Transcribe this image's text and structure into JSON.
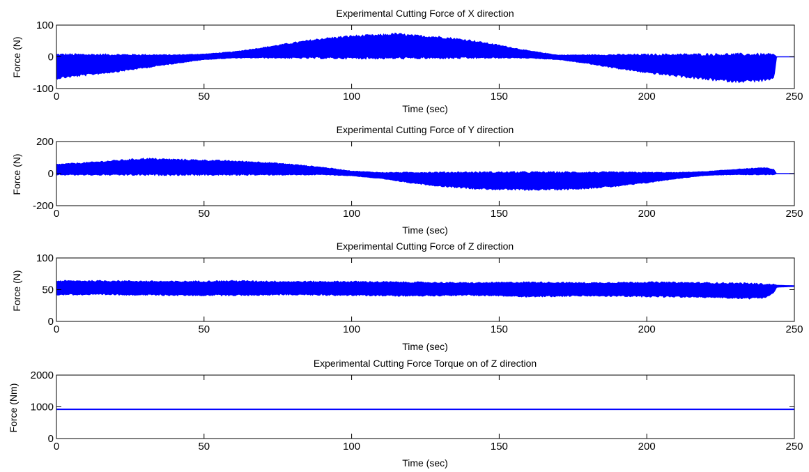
{
  "chart_data": [
    {
      "type": "line",
      "title": "Experimental Cutting Force of X direction",
      "xlabel": "Time (sec)",
      "ylabel": "Force (N)",
      "xlim": [
        0,
        250
      ],
      "ylim": [
        -100,
        100
      ],
      "xticks": [
        "0",
        "50",
        "100",
        "150",
        "200",
        "250"
      ],
      "yticks": [
        "-100",
        "0",
        "100"
      ],
      "color": "#0000ff",
      "grid": false,
      "series": [
        {
          "x": [
            0,
            10,
            20,
            30,
            40,
            50,
            60,
            70,
            80,
            90,
            100,
            110,
            115,
            120,
            130,
            140,
            150,
            160,
            170,
            180,
            190,
            200,
            210,
            220,
            230,
            240,
            243,
            244,
            250
          ],
          "upper": [
            5,
            5,
            5,
            5,
            5,
            8,
            15,
            28,
            42,
            55,
            63,
            66,
            70,
            65,
            60,
            50,
            35,
            18,
            5,
            5,
            5,
            5,
            5,
            5,
            5,
            5,
            4,
            0,
            0
          ],
          "lower": [
            -65,
            -55,
            -45,
            -33,
            -20,
            -8,
            -3,
            -2,
            -2,
            -2,
            -2,
            -2,
            -2,
            -2,
            -2,
            -2,
            -2,
            -3,
            -8,
            -20,
            -35,
            -48,
            -58,
            -68,
            -75,
            -72,
            -68,
            0,
            0
          ]
        }
      ]
    },
    {
      "type": "line",
      "title": "Experimental Cutting Force of Y direction",
      "xlabel": "Time (sec)",
      "ylabel": "Force (N)",
      "xlim": [
        0,
        250
      ],
      "ylim": [
        -200,
        200
      ],
      "xticks": [
        "0",
        "50",
        "100",
        "150",
        "200",
        "250"
      ],
      "yticks": [
        "-200",
        "0",
        "200"
      ],
      "color": "#0000ff",
      "grid": false,
      "series": [
        {
          "x": [
            0,
            10,
            20,
            30,
            40,
            50,
            60,
            70,
            80,
            90,
            100,
            110,
            120,
            130,
            140,
            150,
            160,
            170,
            180,
            190,
            200,
            210,
            220,
            230,
            240,
            243,
            244,
            250
          ],
          "upper": [
            55,
            65,
            78,
            90,
            85,
            80,
            75,
            68,
            55,
            38,
            15,
            5,
            5,
            5,
            5,
            5,
            5,
            5,
            5,
            5,
            5,
            5,
            12,
            25,
            35,
            25,
            0,
            0
          ],
          "lower": [
            -5,
            -5,
            -5,
            -5,
            -5,
            -5,
            -5,
            -5,
            -5,
            -5,
            -12,
            -30,
            -55,
            -75,
            -88,
            -95,
            -97,
            -95,
            -88,
            -75,
            -55,
            -30,
            -10,
            -5,
            -5,
            -5,
            0,
            0
          ]
        }
      ]
    },
    {
      "type": "line",
      "title": "Experimental Cutting Force of Z direction",
      "xlabel": "Time (sec)",
      "ylabel": "Force (N)",
      "xlim": [
        0,
        250
      ],
      "ylim": [
        0,
        100
      ],
      "xticks": [
        "0",
        "50",
        "100",
        "150",
        "200",
        "250"
      ],
      "yticks": [
        "0",
        "50",
        "100"
      ],
      "color": "#0000ff",
      "grid": false,
      "series": [
        {
          "x": [
            0,
            20,
            40,
            60,
            80,
            100,
            120,
            140,
            160,
            180,
            200,
            220,
            235,
            240,
            243,
            244,
            250
          ],
          "upper": [
            63,
            63,
            62,
            63,
            62,
            62,
            61,
            60,
            61,
            60,
            61,
            60,
            59,
            58,
            58,
            57,
            56
          ],
          "lower": [
            43,
            43,
            42,
            42,
            43,
            42,
            41,
            42,
            40,
            41,
            40,
            39,
            37,
            38,
            45,
            54,
            55
          ]
        }
      ]
    },
    {
      "type": "line",
      "title": "Experimental Cutting Force Torque on of Z direction",
      "xlabel": "Time (sec)",
      "ylabel": "Force (Nm)",
      "xlim": [
        0,
        250
      ],
      "ylim": [
        0,
        2000
      ],
      "xticks": [
        "0",
        "50",
        "100",
        "150",
        "200",
        "250"
      ],
      "yticks": [
        "0",
        "1000",
        "2000"
      ],
      "color": "#0000ff",
      "grid": false,
      "series": [
        {
          "x": [
            0,
            250
          ],
          "upper": [
            920,
            920
          ],
          "lower": [
            920,
            920
          ]
        }
      ]
    }
  ]
}
